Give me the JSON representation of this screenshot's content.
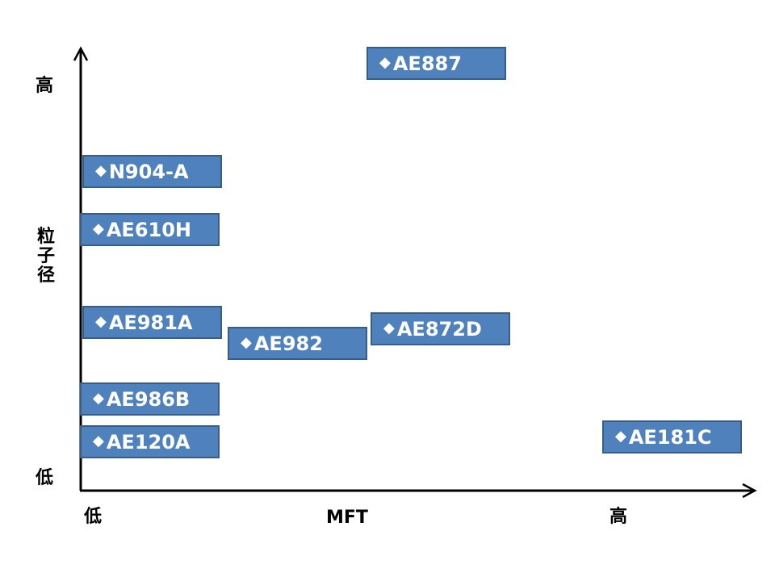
{
  "y_axis": {
    "high": "高",
    "low": "低",
    "title": "粒子径"
  },
  "x_axis": {
    "low": "低",
    "mid": "MFT",
    "high": "高"
  },
  "marker": "◆",
  "products": [
    "AE887",
    "N904-A",
    "AE610H",
    "AE981A",
    "AE982",
    "AE872D",
    "AE986B",
    "AE120A",
    "AE181C"
  ],
  "colors": {
    "box_fill": "#4f81bd",
    "box_border": "#385d8a",
    "box_text": "#ffffff",
    "axis": "#000000"
  }
}
